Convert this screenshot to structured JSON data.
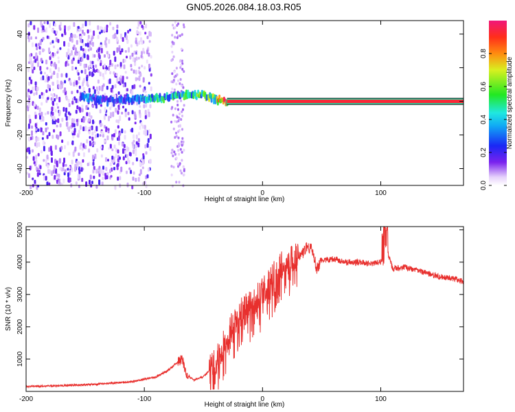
{
  "title": "GN05.2026.084.18.03.R05",
  "chart_data": [
    {
      "type": "heatmap",
      "xlabel": "Height of straight line (km)",
      "ylabel": "Frequency (Hz)",
      "xlim": [
        -200,
        170
      ],
      "ylim": [
        -50,
        48
      ],
      "xticks": [
        -200,
        -100,
        0,
        100
      ],
      "yticks": [
        -40,
        -20,
        0,
        20,
        40
      ],
      "colorbar": {
        "label": "Normalized spectral amplitude",
        "range": [
          0,
          1
        ],
        "ticks": [
          0.0,
          0.2,
          0.4,
          0.6,
          0.8
        ],
        "colormap": "rainbow (white-purple-blue-cyan-green-yellow-red-magenta)"
      },
      "features": {
        "noise_region_x": [
          -200,
          -95
        ],
        "sparse_noise_column_x": [
          -78,
          -67
        ],
        "meteor_trail": [
          {
            "x": -155,
            "y": 3,
            "amp": 0.35
          },
          {
            "x": -130,
            "y": 1,
            "amp": 0.25
          },
          {
            "x": -110,
            "y": 2,
            "amp": 0.35
          },
          {
            "x": -95,
            "y": 2,
            "amp": 0.45
          },
          {
            "x": -85,
            "y": 3,
            "amp": 0.5
          },
          {
            "x": -75,
            "y": 4,
            "amp": 0.5
          },
          {
            "x": -60,
            "y": 5,
            "amp": 0.55
          },
          {
            "x": -48,
            "y": 4,
            "amp": 0.6
          },
          {
            "x": -40,
            "y": 2,
            "amp": 0.7
          },
          {
            "x": -30,
            "y": 0,
            "amp": 0.95
          },
          {
            "x": 0,
            "y": 0,
            "amp": 1.0
          },
          {
            "x": 170,
            "y": 0,
            "amp": 1.0
          }
        ]
      },
      "grid": false
    },
    {
      "type": "line",
      "xlabel": "Height of straight line (km)",
      "ylabel": "SNR (10 * v/v)",
      "xlim": [
        -200,
        170
      ],
      "ylim": [
        0,
        5100
      ],
      "xticks": [
        -200,
        -100,
        0,
        100
      ],
      "yticks": [
        1000,
        2000,
        3000,
        4000,
        5000
      ],
      "color": "#e8302e",
      "grid": false,
      "series": [
        {
          "x": [
            -200,
            -170,
            -140,
            -110,
            -90,
            -80,
            -72,
            -68,
            -64,
            -58,
            -50,
            -45,
            -40,
            -35,
            -30,
            -25,
            -20,
            -15,
            -10,
            -5,
            0,
            5,
            10,
            15,
            20,
            25,
            30,
            35,
            38,
            42,
            46,
            50,
            60,
            70,
            80,
            90,
            100,
            104,
            110,
            120,
            130,
            140,
            150,
            160,
            170
          ],
          "y": [
            150,
            180,
            220,
            300,
            450,
            650,
            900,
            1000,
            500,
            350,
            450,
            650,
            900,
            1300,
            1700,
            2100,
            2400,
            2600,
            2700,
            2900,
            3100,
            3300,
            3600,
            3850,
            4000,
            4100,
            4200,
            4300,
            4500,
            4350,
            3800,
            4050,
            4100,
            4000,
            4000,
            3950,
            4000,
            4550,
            3800,
            3850,
            3750,
            3650,
            3550,
            3500,
            3400
          ]
        }
      ]
    }
  ]
}
